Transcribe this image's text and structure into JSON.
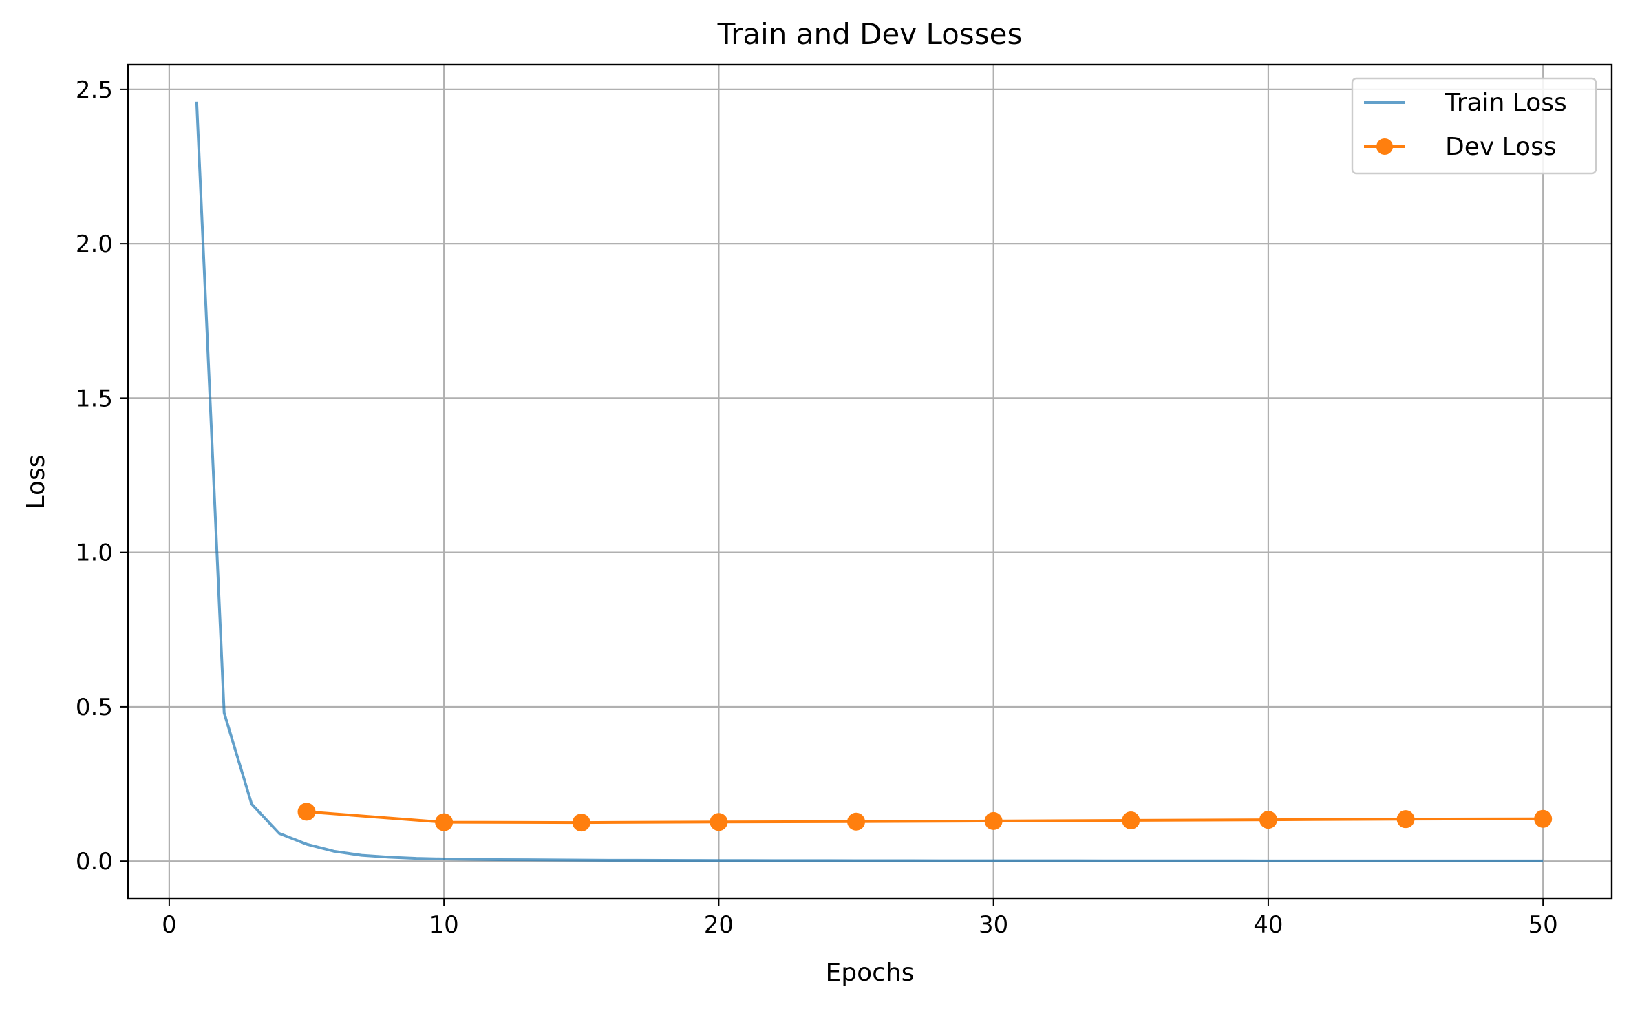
{
  "chart_data": {
    "type": "line",
    "title": "Train and Dev Losses",
    "xlabel": "Epochs",
    "ylabel": "Loss",
    "xlim": [
      -1.5,
      52.5
    ],
    "ylim": [
      -0.12,
      2.58
    ],
    "xticks": [
      0,
      10,
      20,
      30,
      40,
      50
    ],
    "yticks": [
      0.0,
      0.5,
      1.0,
      1.5,
      2.0,
      2.5
    ],
    "xtick_labels": [
      "0",
      "10",
      "20",
      "30",
      "40",
      "50"
    ],
    "ytick_labels": [
      "0.0",
      "0.5",
      "1.0",
      "1.5",
      "2.0",
      "2.5"
    ],
    "grid": true,
    "legend_position": "top-right",
    "series": [
      {
        "name": "Train Loss",
        "color": "#1f77b4",
        "opacity": 0.7,
        "marker": "none",
        "x": [
          1,
          2,
          3,
          4,
          5,
          6,
          7,
          8,
          9,
          10,
          11,
          12,
          13,
          14,
          15,
          16,
          17,
          18,
          19,
          20,
          21,
          22,
          23,
          24,
          25,
          26,
          27,
          28,
          29,
          30,
          31,
          32,
          33,
          34,
          35,
          36,
          37,
          38,
          39,
          40,
          41,
          42,
          43,
          44,
          45,
          46,
          47,
          48,
          49,
          50
        ],
        "y": [
          2.46,
          0.48,
          0.185,
          0.09,
          0.055,
          0.032,
          0.019,
          0.013,
          0.009,
          0.007,
          0.006,
          0.005,
          0.0045,
          0.004,
          0.0035,
          0.003,
          0.0028,
          0.0026,
          0.0024,
          0.0022,
          0.002,
          0.0019,
          0.0018,
          0.0017,
          0.0016,
          0.0015,
          0.0014,
          0.0013,
          0.0013,
          0.0012,
          0.0012,
          0.0011,
          0.0011,
          0.001,
          0.001,
          0.001,
          0.0009,
          0.0009,
          0.0009,
          0.0008,
          0.0008,
          0.0008,
          0.0008,
          0.0007,
          0.0007,
          0.0007,
          0.0007,
          0.0007,
          0.0006,
          0.0006
        ]
      },
      {
        "name": "Dev Loss",
        "color": "#ff7f0e",
        "opacity": 1.0,
        "marker": "circle",
        "x": [
          5,
          10,
          15,
          20,
          25,
          30,
          35,
          40,
          45,
          50
        ],
        "y": [
          0.16,
          0.126,
          0.125,
          0.127,
          0.128,
          0.13,
          0.132,
          0.134,
          0.136,
          0.137
        ]
      }
    ]
  }
}
